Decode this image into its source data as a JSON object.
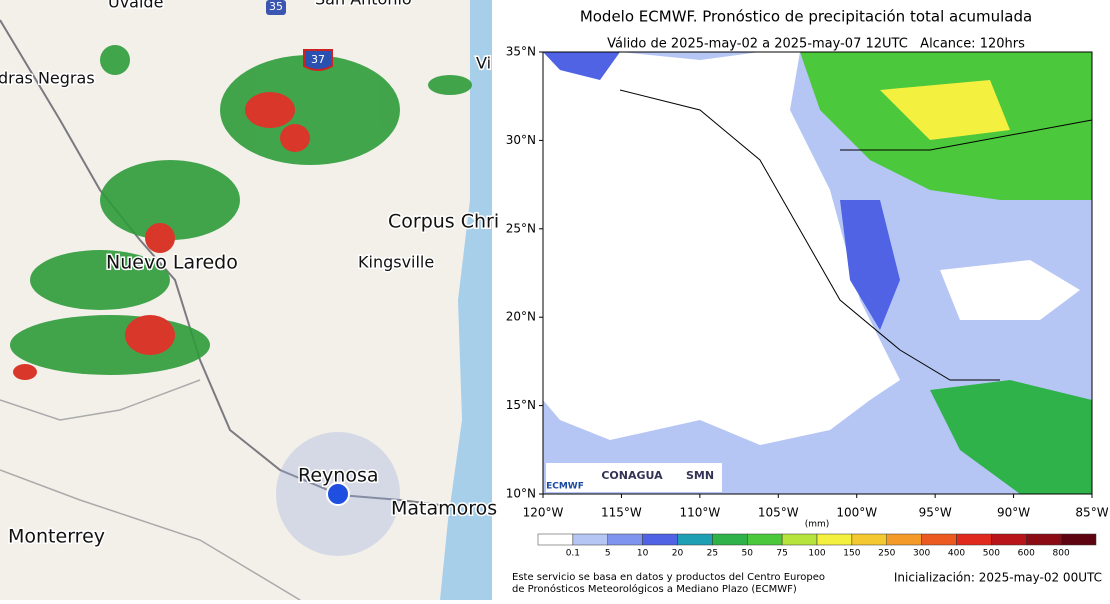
{
  "radar_map": {
    "places": [
      "Uvalde",
      "San Antonio",
      "dras Negras",
      "Vi",
      "Corpus Chri",
      "Kingsville",
      "Nuevo Laredo",
      "Reynosa",
      "Matamoros",
      "Monterrey"
    ],
    "highways": [
      "35",
      "37"
    ]
  },
  "forecast_map": {
    "title": "Modelo ECMWF. Pronóstico de precipitación total acumulada",
    "subtitle": "Válido de 2025-may-02 a 2025-may-07 12UTC   Alcance: 120hrs",
    "lat_range": [
      10,
      35
    ],
    "lon_range": [
      -120,
      -85
    ],
    "lat_ticks": [
      {
        "value": 35,
        "label": "35°N"
      },
      {
        "value": 30,
        "label": "30°N"
      },
      {
        "value": 25,
        "label": "25°N"
      },
      {
        "value": 20,
        "label": "20°N"
      },
      {
        "value": 15,
        "label": "15°N"
      },
      {
        "value": 10,
        "label": "10°N"
      }
    ],
    "lon_ticks": [
      {
        "value": -120,
        "label": "120°W"
      },
      {
        "value": -115,
        "label": "115°W"
      },
      {
        "value": -110,
        "label": "110°W"
      },
      {
        "value": -105,
        "label": "105°W"
      },
      {
        "value": -100,
        "label": "100°W"
      },
      {
        "value": -95,
        "label": "95°W"
      },
      {
        "value": -90,
        "label": "90°W"
      },
      {
        "value": -85,
        "label": "85°W"
      }
    ],
    "colorbar": {
      "unit": "(mm)",
      "ticks": [
        0.1,
        5,
        10,
        20,
        25,
        50,
        75,
        100,
        150,
        250,
        300,
        400,
        500,
        600,
        800
      ],
      "colors": [
        "#ffffff",
        "#b6c6f4",
        "#7f94ee",
        "#4f63e4",
        "#1f9fb4",
        "#2fb24a",
        "#4cc83c",
        "#b6e43c",
        "#f4f040",
        "#f4c830",
        "#f49a28",
        "#ec5a22",
        "#e02a1e",
        "#b8141a",
        "#8c0a14",
        "#5e0410"
      ]
    },
    "logos": [
      "ECMWF",
      "CONAGUA",
      "SMN"
    ],
    "footer_left": [
      "Este servicio se basa en datos y productos del Centro Europeo",
      "de Pronósticos Meteorológicos a Mediano Plazo (ECMWF)"
    ],
    "footer_right": "Inicialización: 2025-may-02 00UTC"
  }
}
